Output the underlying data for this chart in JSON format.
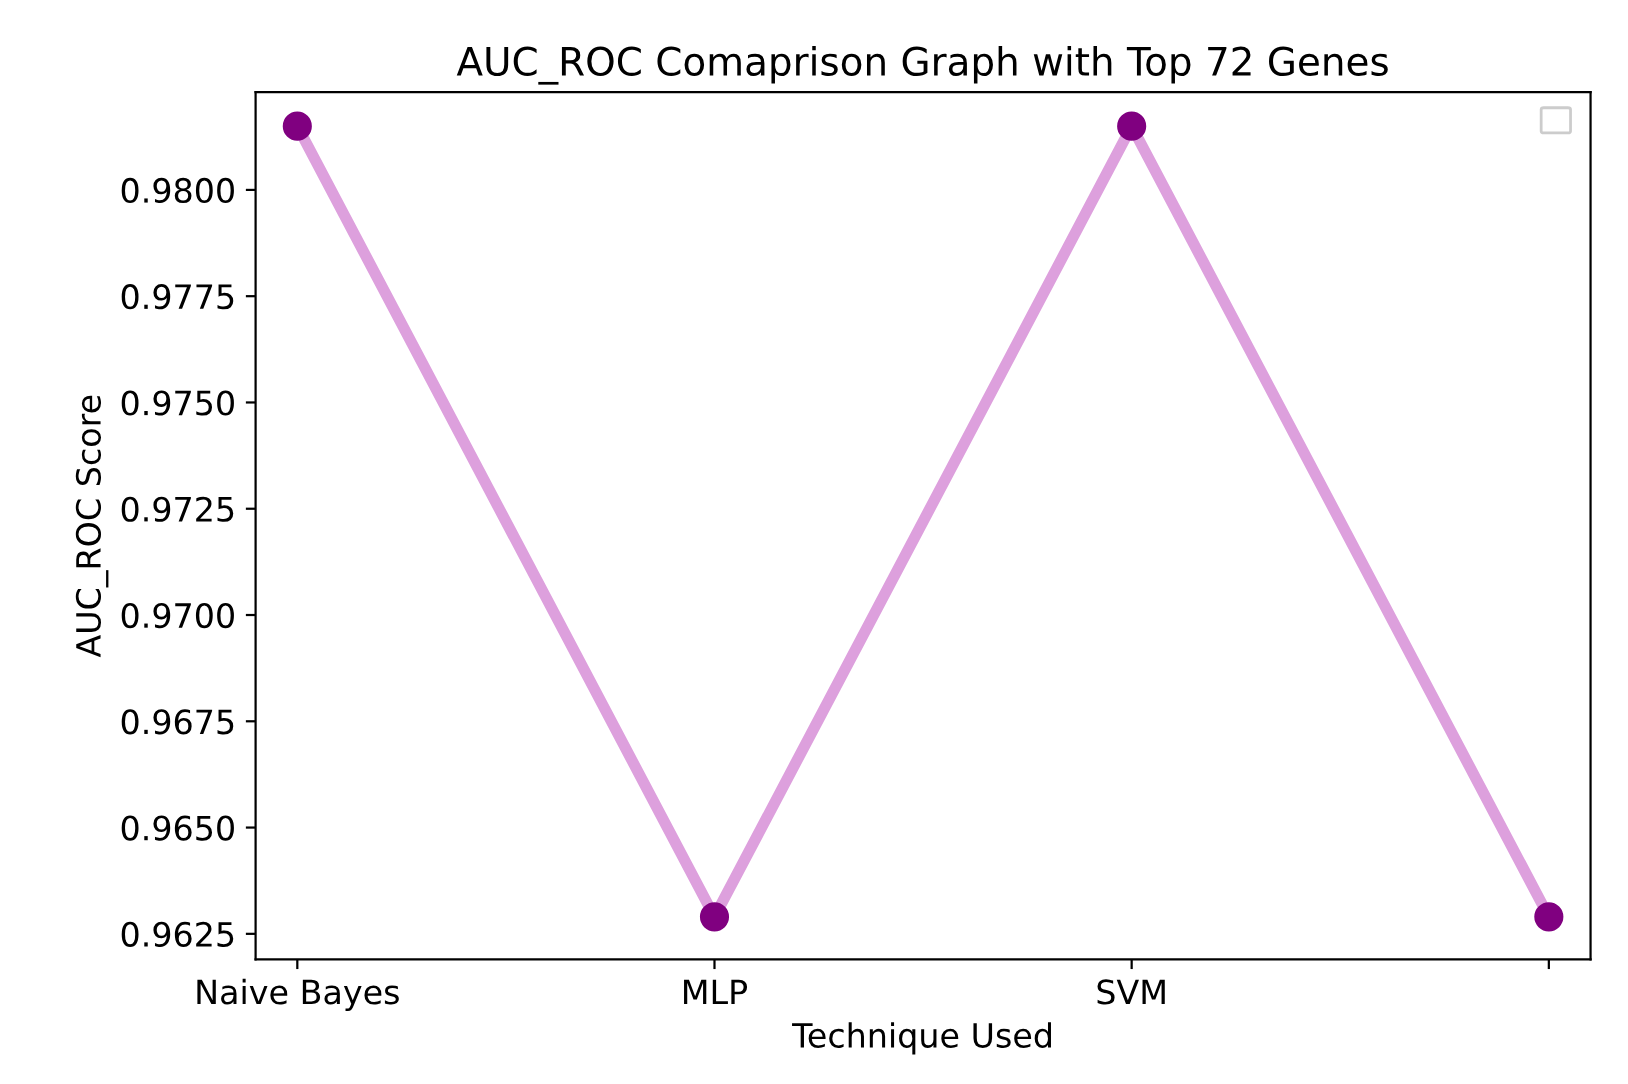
{
  "chart_data": {
    "type": "line",
    "title": "AUC_ROC Comaprison Graph with Top 72 Genes",
    "xlabel": "Technique Used",
    "ylabel": "AUC_ROC Score",
    "categories": [
      "Naive Bayes",
      "MLP",
      "SVM",
      null
    ],
    "series": [
      {
        "color": "#dda0dd",
        "marker": "none",
        "values": [
          0.9815,
          0.9629,
          0.9815,
          0.9629
        ]
      },
      {
        "type": "scatter",
        "color": "#800080",
        "marker": "circle",
        "values": [
          0.9815,
          0.9629,
          0.9815,
          0.9629
        ]
      }
    ],
    "ylim": [
      0.9619,
      0.9823
    ],
    "yticks": [
      {
        "value": 0.9625,
        "label": "0.9625"
      },
      {
        "value": 0.965,
        "label": "0.9650"
      },
      {
        "value": 0.9675,
        "label": "0.9675"
      },
      {
        "value": 0.97,
        "label": "0.9700"
      },
      {
        "value": 0.9725,
        "label": "0.9725"
      },
      {
        "value": 0.975,
        "label": "0.9750"
      },
      {
        "value": 0.9775,
        "label": "0.9775"
      },
      {
        "value": 0.98,
        "label": "0.9800"
      }
    ],
    "grid": false,
    "line_style": "solid"
  }
}
